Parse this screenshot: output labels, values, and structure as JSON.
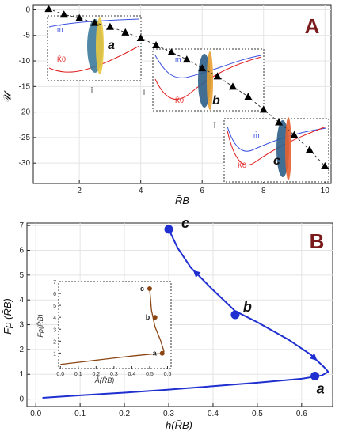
{
  "panel_a": {
    "panel_label": "A",
    "ylabel": "𝒰",
    "xlabel": "R̄B",
    "inset_labels": [
      "a",
      "b",
      "c"
    ],
    "inset_xlabel": "l̄",
    "inset_legend": [
      "m̄",
      "K̄0"
    ]
  },
  "panel_b": {
    "panel_label": "B",
    "ylabel": "Fρ (R̄B)",
    "xlabel": "h̄(R̄B)",
    "point_labels": [
      "a",
      "b",
      "c"
    ],
    "inset_xlabel": "Ā(R̄B)",
    "inset_ylabel": "Fρ(R̄B)",
    "inset_point_labels": [
      "a",
      "b",
      "c"
    ]
  },
  "colors": {
    "main_curve": "#1f2fd0",
    "inset_curve": "#8b4513",
    "label": "#7a1a1a",
    "m_curve": "#3a4fe0",
    "k_curve": "#e02020"
  },
  "chart_data": [
    {
      "type": "scatter",
      "xlabel": "R̄B",
      "ylabel": "𝒰",
      "xlim": [
        0.5,
        10.2
      ],
      "ylim": [
        -34,
        1
      ],
      "xticks": [
        2,
        4,
        6,
        8,
        10
      ],
      "yticks": [
        0,
        -5,
        -10,
        -15,
        -20,
        -25,
        -30
      ],
      "grid": true,
      "marker": "triangle",
      "x": [
        1.0,
        1.5,
        2.0,
        2.5,
        3.0,
        3.5,
        4.0,
        4.5,
        5.0,
        5.5,
        6.0,
        6.5,
        7.0,
        7.5,
        8.0,
        8.5,
        9.0,
        9.5,
        10.0
      ],
      "y": [
        0.2,
        -0.9,
        -1.6,
        -2.5,
        -3.3,
        -4.4,
        -5.5,
        -6.9,
        -8.3,
        -9.7,
        -11.4,
        -13.0,
        -15.0,
        -17.0,
        -19.5,
        -22.0,
        -24.5,
        -27.4,
        -30.6
      ]
    },
    {
      "type": "line",
      "xlabel": "h̄(R̄B)",
      "ylabel": "Fρ (R̄B)",
      "xlim": [
        -0.02,
        0.67
      ],
      "ylim": [
        -0.3,
        7.1
      ],
      "xticks": [
        0.0,
        0.1,
        0.2,
        0.3,
        0.4,
        0.5,
        0.6
      ],
      "yticks": [
        0,
        1,
        2,
        3,
        4,
        5,
        6,
        7
      ],
      "grid": true,
      "x": [
        0.015,
        0.1,
        0.2,
        0.3,
        0.4,
        0.5,
        0.6,
        0.645,
        0.66,
        0.65,
        0.62,
        0.57,
        0.5,
        0.45,
        0.4,
        0.35,
        0.32,
        0.3
      ],
      "y": [
        0.05,
        0.15,
        0.26,
        0.38,
        0.52,
        0.66,
        0.82,
        0.95,
        1.1,
        1.3,
        1.8,
        2.4,
        3.1,
        3.55,
        4.4,
        5.3,
        6.1,
        6.85
      ],
      "points": [
        {
          "label": "a",
          "x": 0.63,
          "y": 0.93
        },
        {
          "label": "b",
          "x": 0.45,
          "y": 3.4
        },
        {
          "label": "c",
          "x": 0.3,
          "y": 6.85
        }
      ]
    },
    {
      "type": "line",
      "xlabel": "Ā(R̄B)",
      "ylabel": "Fρ(R̄B)",
      "xlim": [
        -0.01,
        0.62
      ],
      "ylim": [
        -0.3,
        7.0
      ],
      "xticks": [
        0.0,
        0.1,
        0.2,
        0.3,
        0.4,
        0.5,
        0.6
      ],
      "yticks": [
        1,
        2,
        3,
        4,
        5,
        6,
        7
      ],
      "x": [
        0.0,
        0.1,
        0.2,
        0.3,
        0.4,
        0.5,
        0.56,
        0.58,
        0.56,
        0.53,
        0.51,
        0.5
      ],
      "y": [
        0.05,
        0.22,
        0.4,
        0.58,
        0.75,
        0.9,
        0.95,
        1.15,
        2.1,
        3.2,
        4.6,
        6.4
      ],
      "points": [
        {
          "label": "a",
          "x": 0.57,
          "y": 0.98
        },
        {
          "label": "b",
          "x": 0.53,
          "y": 4.0
        },
        {
          "label": "c",
          "x": 0.5,
          "y": 6.4
        }
      ]
    }
  ]
}
